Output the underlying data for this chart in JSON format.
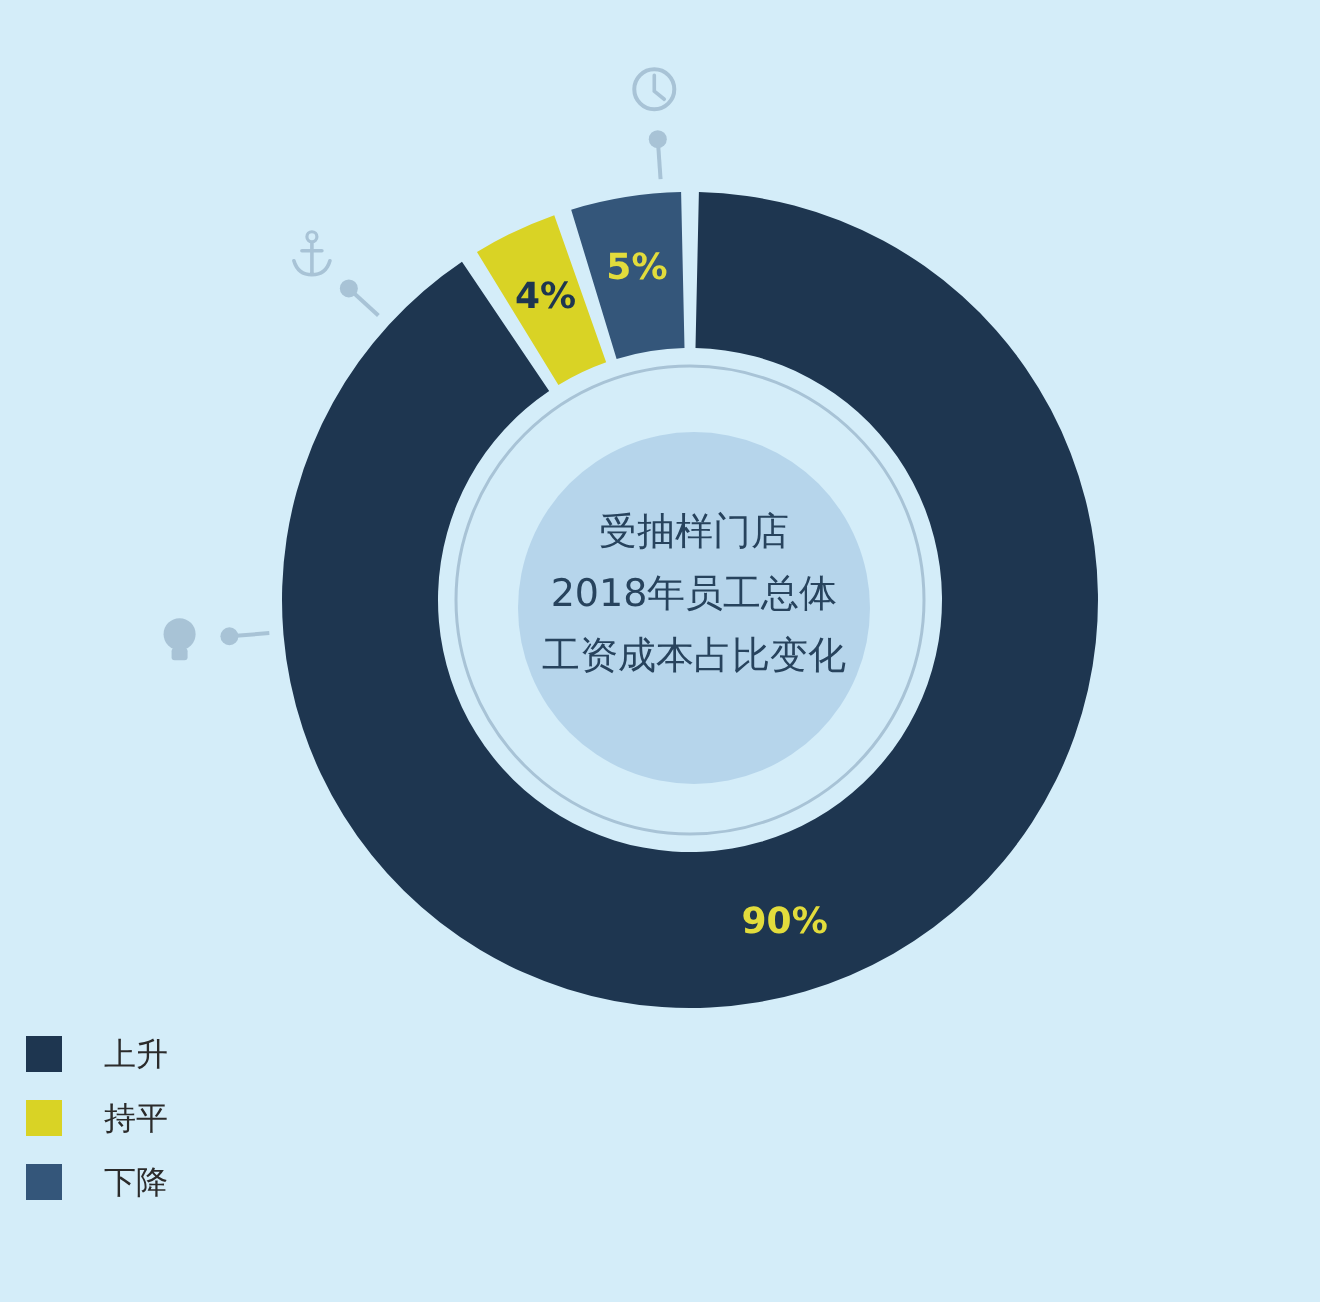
{
  "chart_data": {
    "type": "donut",
    "title": "受抽样门店2018年员工总体工资成本占比变化",
    "categories": [
      "上升",
      "持平",
      "下降"
    ],
    "values": [
      90,
      4,
      5
    ],
    "colors": [
      "#1e3650",
      "#d9d325",
      "#34567a"
    ],
    "value_labels": [
      "90%",
      "4%",
      "5%"
    ],
    "legend": "bottom left"
  }
}
